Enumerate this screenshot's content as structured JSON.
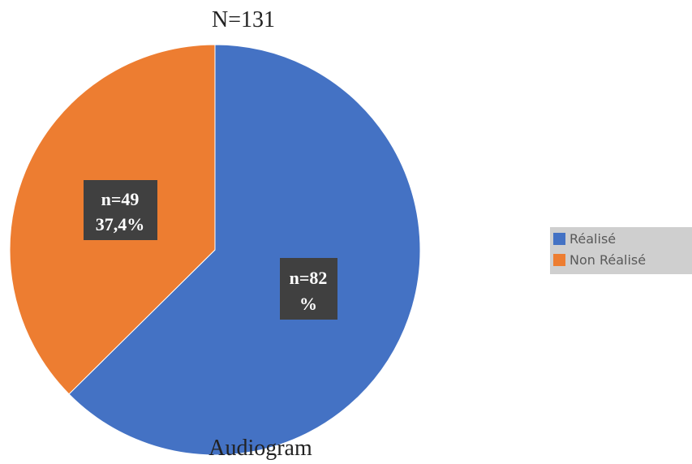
{
  "chart_data": {
    "type": "pie",
    "title": "N=131",
    "subtitle": "Audiogram",
    "slices": [
      {
        "name": "Réalisé",
        "value": 82,
        "color": "#4472c4",
        "label_line1": "n=82",
        "label_line2": "%"
      },
      {
        "name": "Non Réalisé",
        "value": 49,
        "color": "#ed7d31",
        "label_line1": "n=49",
        "label_line2": "37,4%"
      }
    ],
    "legend_placement": "right"
  }
}
